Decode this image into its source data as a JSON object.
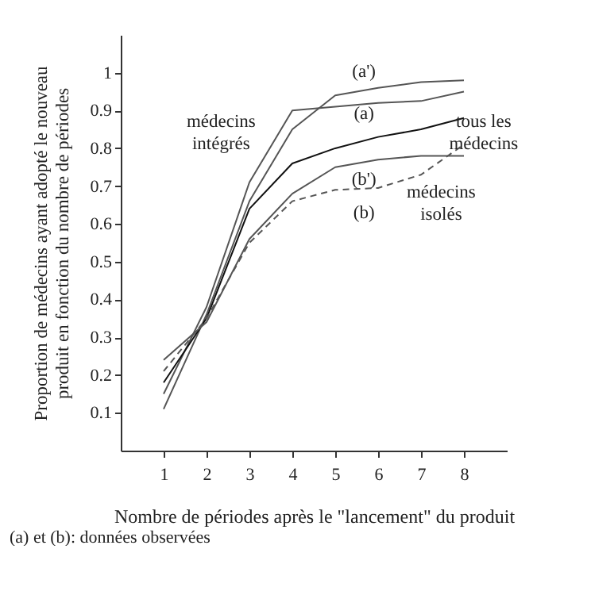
{
  "chart_data": {
    "type": "line",
    "xlabel": "Nombre de périodes après le \"lancement\" du produit",
    "ylabel": "Proportion de médecins ayant adopté le nouveau\nproduit en fonction du nombre de périodes",
    "x": [
      1,
      2,
      3,
      4,
      5,
      6,
      7,
      8
    ],
    "series": [
      {
        "color": "#555555",
        "line_style": "solid",
        "values": [
          0.11,
          0.36,
          0.66,
          0.85,
          0.94,
          0.96,
          0.975,
          0.98
        ]
      },
      {
        "color": "#555555",
        "line_style": "solid",
        "values": [
          0.15,
          0.38,
          0.71,
          0.9,
          0.91,
          0.92,
          0.925,
          0.95
        ]
      },
      {
        "color": "#111111",
        "line_style": "solid",
        "values": [
          0.18,
          0.35,
          0.64,
          0.76,
          0.8,
          0.83,
          0.85,
          0.88
        ]
      },
      {
        "color": "#555555",
        "line_style": "solid",
        "values": [
          0.24,
          0.34,
          0.56,
          0.68,
          0.75,
          0.77,
          0.78,
          0.78
        ]
      },
      {
        "color": "#555555",
        "line_style": "dashed",
        "values": [
          0.21,
          0.35,
          0.55,
          0.66,
          0.69,
          0.695,
          0.73,
          0.81
        ]
      }
    ],
    "xlim": [
      0,
      9
    ],
    "ylim": [
      0,
      1.1
    ],
    "xticks": [
      1,
      2,
      3,
      4,
      5,
      6,
      7,
      8
    ],
    "yticks": [
      0.1,
      0.2,
      0.3,
      0.4,
      0.5,
      0.6,
      0.7,
      0.8,
      0.9,
      {
        "value": 1,
        "label": "1"
      }
    ],
    "grid": false,
    "legend": false,
    "marker": "none",
    "annotations": [
      "(a')",
      "(a)",
      "(b')",
      "(b)",
      "médecins\nintégrés",
      "tous les\nmédecins",
      "médecins\nisolés",
      "(a) et (b): données observées"
    ]
  }
}
